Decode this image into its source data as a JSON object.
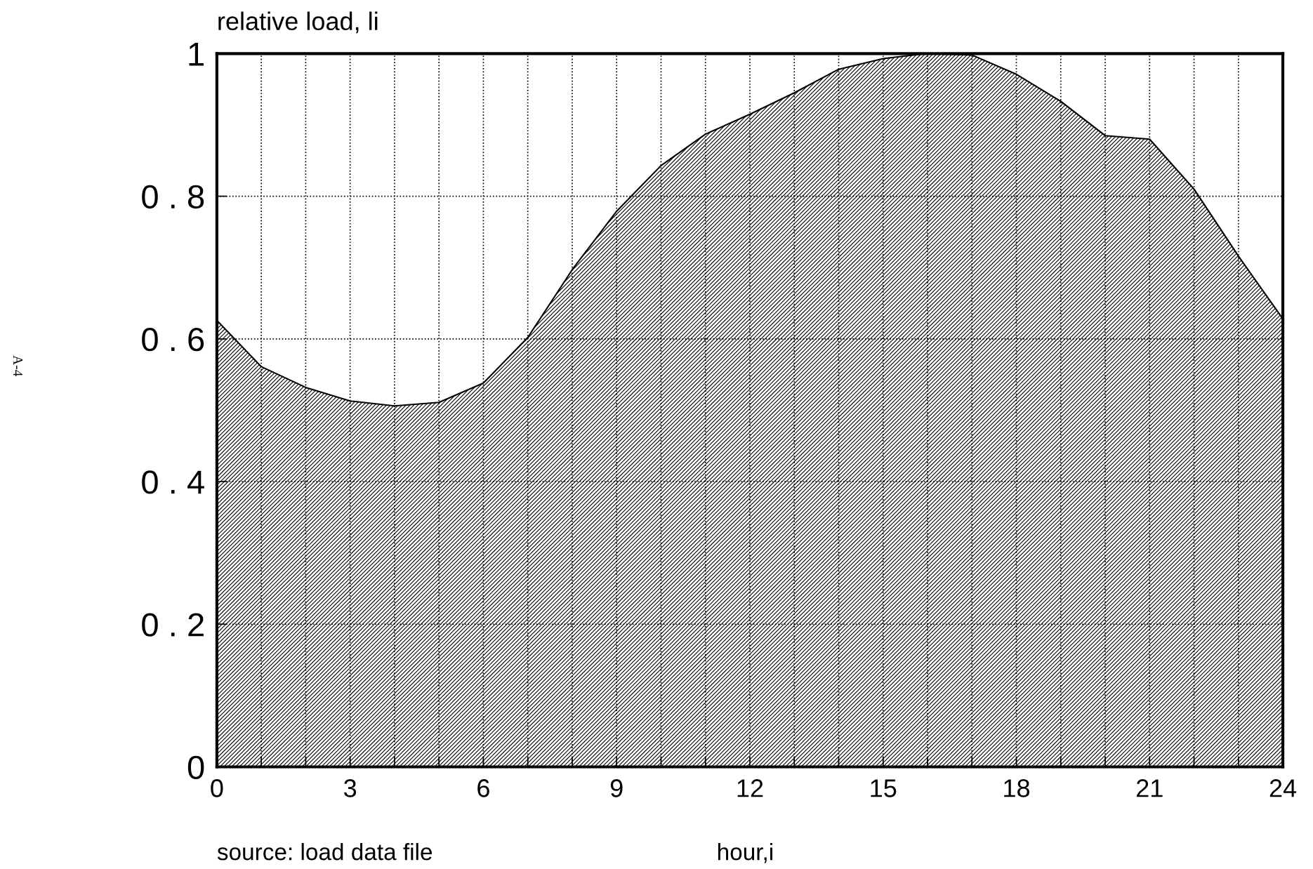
{
  "chart_data": {
    "type": "area",
    "title": "relative load, li",
    "xlabel": "hour,i",
    "annotations": [
      "source: load data file",
      "A-4"
    ],
    "x": [
      0,
      1,
      2,
      3,
      4,
      5,
      6,
      7,
      8,
      9,
      10,
      11,
      12,
      13,
      14,
      15,
      16,
      17,
      18,
      19,
      20,
      21,
      22,
      23,
      24
    ],
    "series": [
      {
        "color": "#000000",
        "values": [
          0.626,
          0.561,
          0.532,
          0.513,
          0.506,
          0.511,
          0.538,
          0.602,
          0.697,
          0.779,
          0.843,
          0.887,
          0.915,
          0.945,
          0.978,
          0.993,
          1.0,
          0.998,
          0.971,
          0.933,
          0.885,
          0.88,
          0.81,
          0.716,
          0.628
        ]
      }
    ],
    "xlim": [
      0,
      24
    ],
    "ylim": [
      0,
      1
    ],
    "xticks": [
      0,
      {
        "value": 1,
        "label": null
      },
      {
        "value": 2,
        "label": null
      },
      3,
      {
        "value": 4,
        "label": null
      },
      {
        "value": 5,
        "label": null
      },
      6,
      {
        "value": 7,
        "label": null
      },
      {
        "value": 8,
        "label": null
      },
      9,
      {
        "value": 10,
        "label": null
      },
      {
        "value": 11,
        "label": null
      },
      12,
      {
        "value": 13,
        "label": null
      },
      {
        "value": 14,
        "label": null
      },
      15,
      {
        "value": 16,
        "label": null
      },
      {
        "value": 17,
        "label": null
      },
      18,
      {
        "value": 19,
        "label": null
      },
      {
        "value": 20,
        "label": null
      },
      21,
      {
        "value": 22,
        "label": null
      },
      {
        "value": 23,
        "label": null
      },
      24
    ],
    "yticks": [
      0,
      {
        "value": 0.2,
        "label": "0 . 2"
      },
      {
        "value": 0.4,
        "label": "0 . 4"
      },
      {
        "value": 0.6,
        "label": "0 . 6"
      },
      {
        "value": 0.8,
        "label": "0 . 8"
      },
      1
    ],
    "grid": true,
    "line_style": "solid"
  }
}
